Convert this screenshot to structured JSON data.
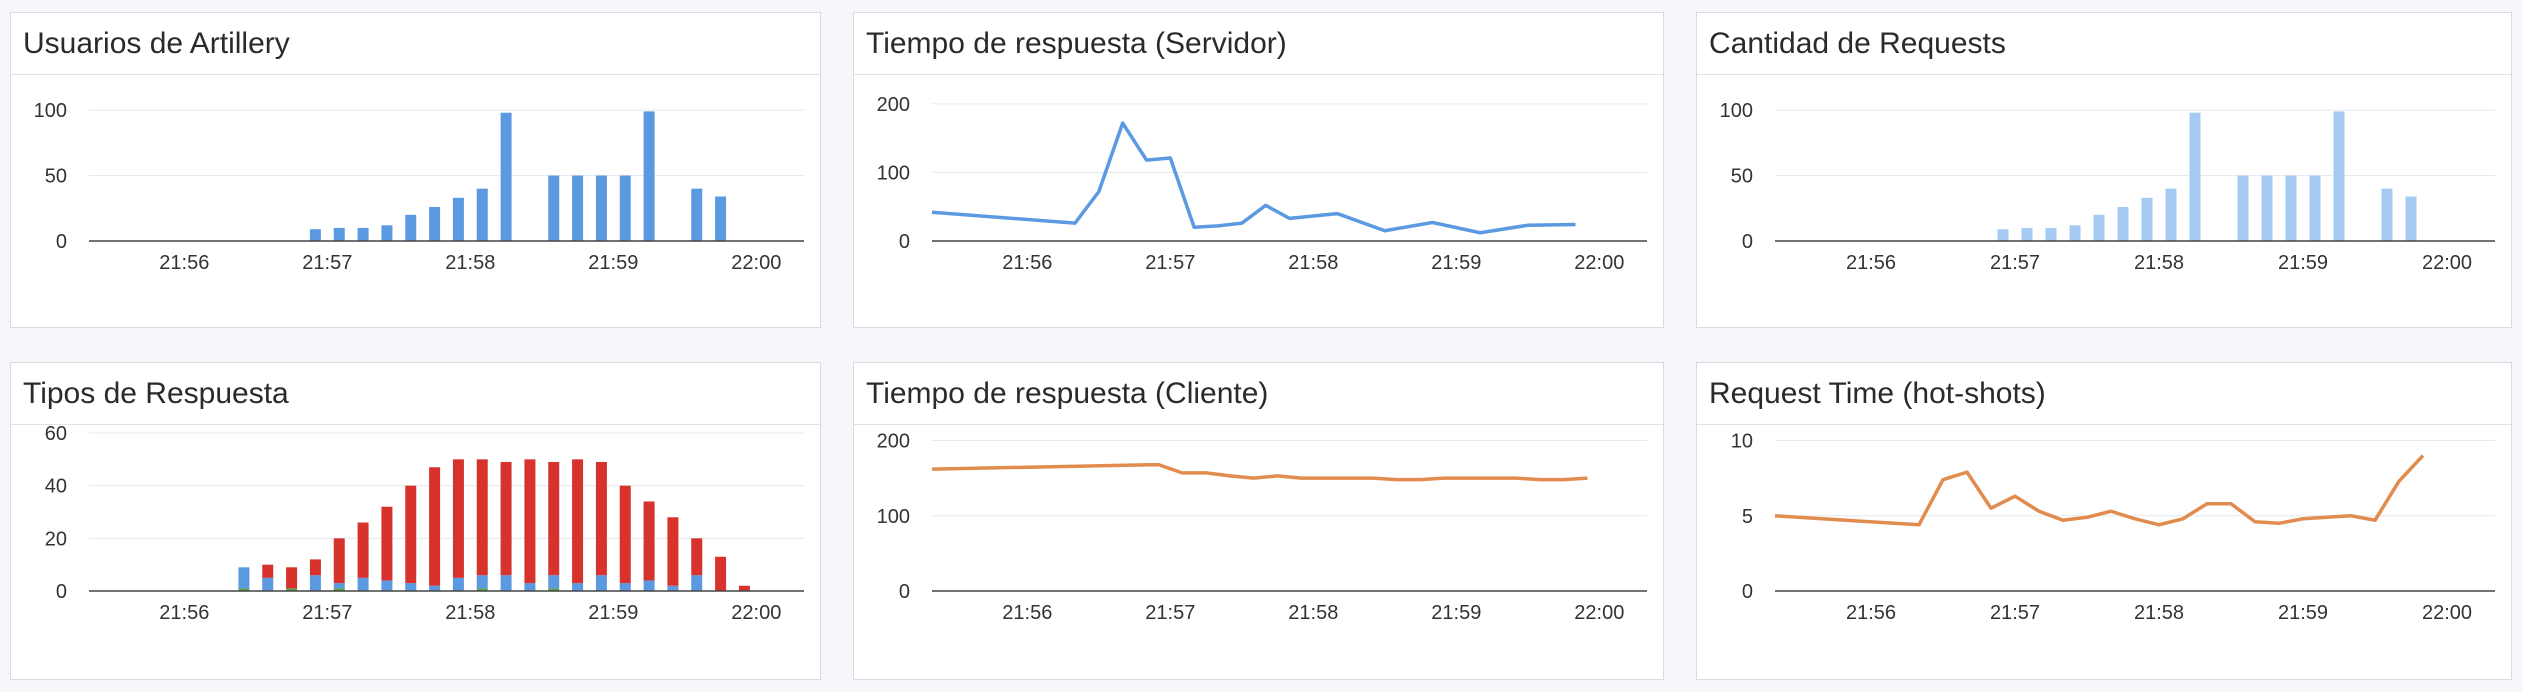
{
  "colors": {
    "blue": "#5b9ae0",
    "light_blue": "#a6cbf2",
    "red": "#d8322d",
    "orange": "#e28b4f",
    "green": "#55a64a"
  },
  "chart_data": [
    {
      "id": "p1",
      "type": "bar",
      "title": "Usuarios de Artillery",
      "x_ticks": [
        "21:56",
        "21:57",
        "21:58",
        "21:59",
        "22:00"
      ],
      "x_range": [
        "21:55:20",
        "22:00:20"
      ],
      "ylim": [
        0,
        110
      ],
      "y_ticks": [
        0,
        50,
        100
      ],
      "color": "blue",
      "x": [
        "21:56:55",
        "21:57:05",
        "21:57:15",
        "21:57:25",
        "21:57:35",
        "21:57:45",
        "21:57:55",
        "21:58:05",
        "21:58:15",
        "21:58:35",
        "21:58:45",
        "21:58:55",
        "21:59:05",
        "21:59:15",
        "21:59:35",
        "21:59:45"
      ],
      "values": [
        9,
        10,
        10,
        12,
        20,
        26,
        33,
        40,
        98,
        50,
        50,
        50,
        50,
        99,
        40,
        34
      ]
    },
    {
      "id": "p2",
      "type": "line",
      "title": "Tiempo de respuesta (Servidor)",
      "x_ticks": [
        "21:56",
        "21:57",
        "21:58",
        "21:59",
        "22:00"
      ],
      "x_range": [
        "21:55:20",
        "22:00:20"
      ],
      "ylim": [
        0,
        210
      ],
      "y_ticks": [
        0,
        100,
        200
      ],
      "color": "blue",
      "x": [
        "21:55:20",
        "21:56:20",
        "21:56:30",
        "21:56:40",
        "21:56:50",
        "21:57:00",
        "21:57:10",
        "21:57:20",
        "21:57:30",
        "21:57:40",
        "21:57:50",
        "21:58:10",
        "21:58:30",
        "21:58:50",
        "21:59:10",
        "21:59:30",
        "21:59:50"
      ],
      "values": [
        42,
        26,
        72,
        172,
        118,
        121,
        20,
        22,
        26,
        52,
        33,
        40,
        15,
        27,
        12,
        23,
        24
      ]
    },
    {
      "id": "p3",
      "type": "bar",
      "title": "Cantidad de Requests",
      "x_ticks": [
        "21:56",
        "21:57",
        "21:58",
        "21:59",
        "22:00"
      ],
      "x_range": [
        "21:55:20",
        "22:00:20"
      ],
      "ylim": [
        0,
        110
      ],
      "y_ticks": [
        0,
        50,
        100
      ],
      "color": "light_blue",
      "x": [
        "21:56:55",
        "21:57:05",
        "21:57:15",
        "21:57:25",
        "21:57:35",
        "21:57:45",
        "21:57:55",
        "21:58:05",
        "21:58:15",
        "21:58:35",
        "21:58:45",
        "21:58:55",
        "21:59:05",
        "21:59:15",
        "21:59:35",
        "21:59:45"
      ],
      "values": [
        9,
        10,
        10,
        12,
        20,
        26,
        33,
        40,
        98,
        50,
        50,
        50,
        50,
        99,
        40,
        34
      ]
    },
    {
      "id": "p4",
      "type": "bar",
      "stacked": true,
      "title": "Tipos de Respuesta",
      "x_ticks": [
        "21:56",
        "21:57",
        "21:58",
        "21:59",
        "22:00"
      ],
      "x_range": [
        "21:55:20",
        "22:00:20"
      ],
      "ylim": [
        0,
        60
      ],
      "y_ticks": [
        0,
        20,
        40,
        60
      ],
      "x": [
        "21:56:25",
        "21:56:35",
        "21:56:45",
        "21:56:55",
        "21:57:05",
        "21:57:15",
        "21:57:25",
        "21:57:35",
        "21:57:45",
        "21:57:55",
        "21:58:05",
        "21:58:15",
        "21:58:25",
        "21:58:35",
        "21:58:45",
        "21:58:55",
        "21:59:05",
        "21:59:15",
        "21:59:25",
        "21:59:35",
        "21:59:45",
        "21:59:55"
      ],
      "series": [
        {
          "color": "green",
          "values": [
            1,
            0,
            1,
            0,
            1,
            0,
            0,
            0,
            0,
            0,
            1,
            0,
            0,
            1,
            0,
            0,
            0,
            0,
            0,
            0,
            0,
            0
          ]
        },
        {
          "color": "blue",
          "values": [
            8,
            5,
            0,
            6,
            2,
            5,
            4,
            3,
            2,
            5,
            5,
            6,
            3,
            5,
            3,
            6,
            3,
            4,
            2,
            6,
            0,
            0
          ]
        },
        {
          "color": "red",
          "values": [
            0,
            5,
            8,
            6,
            17,
            21,
            28,
            37,
            45,
            45,
            44,
            43,
            47,
            43,
            47,
            43,
            37,
            30,
            26,
            14,
            13,
            2
          ]
        }
      ]
    },
    {
      "id": "p5",
      "type": "line",
      "title": "Tiempo de respuesta (Cliente)",
      "x_ticks": [
        "21:56",
        "21:57",
        "21:58",
        "21:59",
        "22:00"
      ],
      "x_range": [
        "21:55:20",
        "22:00:20"
      ],
      "ylim": [
        0,
        210
      ],
      "y_ticks": [
        0,
        100,
        200
      ],
      "color": "orange",
      "x": [
        "21:55:20",
        "21:56:55",
        "21:57:05",
        "21:57:15",
        "21:57:25",
        "21:57:35",
        "21:57:45",
        "21:57:55",
        "21:58:05",
        "21:58:15",
        "21:58:25",
        "21:58:35",
        "21:58:45",
        "21:58:55",
        "21:59:05",
        "21:59:15",
        "21:59:25",
        "21:59:35",
        "21:59:45",
        "21:59:55"
      ],
      "values": [
        162,
        168,
        157,
        157,
        153,
        150,
        153,
        150,
        150,
        150,
        150,
        148,
        148,
        150,
        150,
        150,
        150,
        148,
        148,
        150
      ]
    },
    {
      "id": "p6",
      "type": "line",
      "title": "Request Time (hot-shots)",
      "x_ticks": [
        "21:56",
        "21:57",
        "21:58",
        "21:59",
        "22:00"
      ],
      "x_range": [
        "21:55:20",
        "22:00:20"
      ],
      "ylim": [
        0,
        10.5
      ],
      "y_ticks": [
        0,
        5,
        10
      ],
      "color": "orange",
      "x": [
        "21:55:20",
        "21:56:20",
        "21:56:30",
        "21:56:40",
        "21:56:50",
        "21:57:00",
        "21:57:10",
        "21:57:20",
        "21:57:30",
        "21:57:40",
        "21:57:50",
        "21:58:00",
        "21:58:10",
        "21:58:20",
        "21:58:30",
        "21:58:40",
        "21:58:50",
        "21:59:00",
        "21:59:10",
        "21:59:20",
        "21:59:30",
        "21:59:40",
        "21:59:50"
      ],
      "values": [
        5.0,
        4.4,
        7.4,
        7.9,
        5.5,
        6.3,
        5.3,
        4.7,
        4.9,
        5.3,
        4.8,
        4.4,
        4.8,
        5.8,
        5.8,
        4.6,
        4.5,
        4.8,
        4.9,
        5.0,
        4.7,
        7.3,
        9.0
      ]
    }
  ]
}
